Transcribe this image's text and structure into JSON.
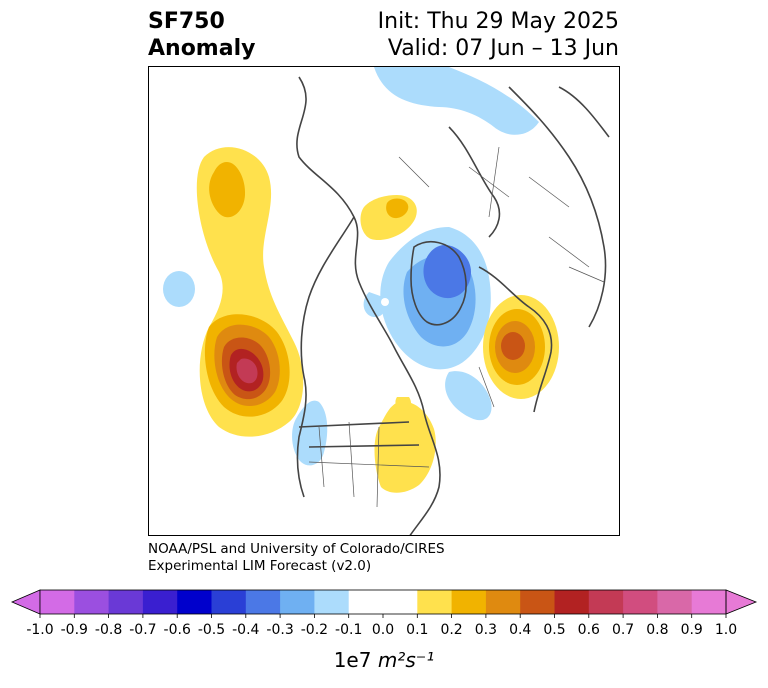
{
  "title": {
    "variable": "SF750",
    "kind": "Anomaly",
    "init": "Init: Thu 29 May 2025",
    "valid": "Valid: 07 Jun – 13 Jun"
  },
  "credit": {
    "line1": "NOAA/PSL and University of Colorado/CIRES",
    "line2": "Experimental LIM Forecast (v2.0)"
  },
  "colorbar": {
    "levels": [
      "-1.0",
      "-0.9",
      "-0.8",
      "-0.7",
      "-0.6",
      "-0.5",
      "-0.4",
      "-0.3",
      "-0.2",
      "-0.1",
      "0.0",
      "0.1",
      "0.2",
      "0.3",
      "0.4",
      "0.5",
      "0.6",
      "0.7",
      "0.8",
      "0.9",
      "1.0"
    ],
    "colors": [
      "#d36be6",
      "#9b4fe0",
      "#6a39d6",
      "#3a1fd0",
      "#0000cc",
      "#2a3fd6",
      "#4b78e6",
      "#6fb0f2",
      "#acdcfc",
      "#ffffff",
      "#ffffff",
      "#ffe14d",
      "#f1b300",
      "#df8a10",
      "#c95515",
      "#b22222",
      "#c33a55",
      "#d14d7f",
      "#d968a8",
      "#e77ad6"
    ],
    "under_color": "#d36be6",
    "over_color": "#e77ad6",
    "units_prefix": "1e7",
    "units_expr": "m²s⁻¹"
  },
  "map": {
    "projection": "north-polar-stereographic",
    "features": [
      "positive anomaly North Pacific (max ~0.7)",
      "positive anomaly western North America / Alaska (~0.3)",
      "negative anomaly Greenland / Arctic (~ -0.4)",
      "positive anomaly western Europe (~0.5)",
      "positive anomaly eastern United States (~0.3)",
      "negative anomaly northern Siberia (~ -0.2)"
    ]
  }
}
